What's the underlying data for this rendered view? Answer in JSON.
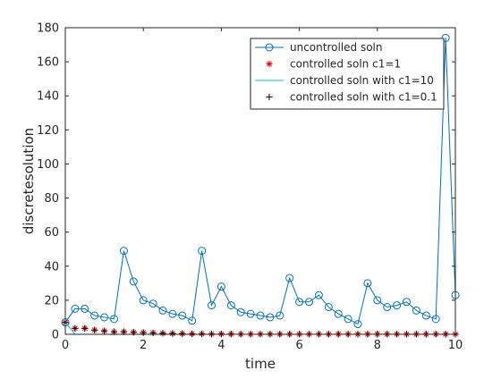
{
  "chart_data": {
    "type": "line",
    "xlabel": "time",
    "ylabel": "discretesolution",
    "xlim": [
      0,
      10
    ],
    "ylim": [
      0,
      180
    ],
    "xticks": [
      0,
      2,
      4,
      6,
      8,
      10
    ],
    "yticks": [
      0,
      20,
      40,
      60,
      80,
      100,
      120,
      140,
      160,
      180
    ],
    "grid": false,
    "legend_position": "top-right",
    "x": [
      0,
      0.25,
      0.5,
      0.75,
      1,
      1.25,
      1.5,
      1.75,
      2,
      2.25,
      2.5,
      2.75,
      3,
      3.25,
      3.5,
      3.75,
      4,
      4.25,
      4.5,
      4.75,
      5,
      5.25,
      5.5,
      5.75,
      6,
      6.25,
      6.5,
      6.75,
      7,
      7.25,
      7.5,
      7.75,
      8,
      8.25,
      8.5,
      8.75,
      9,
      9.25,
      9.5,
      9.75,
      10
    ],
    "series": [
      {
        "name": "uncontrolled soln",
        "color": "#0072BD",
        "marker": "circle",
        "line": true,
        "values": [
          7,
          15,
          15,
          11,
          10,
          9,
          49,
          31,
          20,
          18,
          14,
          12,
          11,
          8,
          49,
          17,
          28,
          17,
          13,
          12,
          11,
          10,
          11,
          33,
          19,
          19,
          23,
          16,
          12,
          9,
          6,
          30,
          20,
          16,
          17,
          19,
          14,
          11,
          9,
          174,
          23
        ]
      },
      {
        "name": "controlled soln c1=1",
        "color": "#ff0000",
        "marker": "asterisk",
        "line": false,
        "values": [
          7,
          3.5,
          3.5,
          2.5,
          2,
          1.5,
          1.5,
          1.2,
          1,
          0.8,
          0.6,
          0.5,
          0.4,
          0.3,
          0.3,
          0.2,
          0.2,
          0.2,
          0.1,
          0.1,
          0.1,
          0.1,
          0.1,
          0.1,
          0.1,
          0.1,
          0.1,
          0.1,
          0.1,
          0.1,
          0.1,
          0.1,
          0.1,
          0.1,
          0.1,
          0.1,
          0.1,
          0.1,
          0.1,
          0.1,
          0.1
        ]
      },
      {
        "name": "controlled soln with c1=10",
        "color": "#00c8c8",
        "marker": "none",
        "line": true,
        "values": [
          7,
          0,
          0,
          0,
          0,
          0,
          0,
          0,
          0,
          0,
          0,
          0,
          0,
          0,
          0,
          0,
          0,
          0,
          0,
          0,
          0,
          0,
          0,
          0,
          0,
          0,
          0,
          0,
          0,
          0,
          0,
          0,
          0,
          0,
          0,
          0,
          0,
          0,
          0,
          0,
          0
        ]
      },
      {
        "name": "controlled soln with c1=0.1",
        "color": "#000000",
        "marker": "plus",
        "line": false,
        "values": [
          7,
          3.5,
          3.5,
          2.5,
          2,
          1.5,
          1.5,
          1.2,
          1,
          0.8,
          0.6,
          0.5,
          0.4,
          0.3,
          0.3,
          0.2,
          0.2,
          0.2,
          0.1,
          0.1,
          0.1,
          0.1,
          0.1,
          0.1,
          0.1,
          0.1,
          0.1,
          0.1,
          0.1,
          0.1,
          0.1,
          0.1,
          0.1,
          0.1,
          0.1,
          0.1,
          0.1,
          0.1,
          0.1,
          0.1,
          0.1
        ]
      }
    ]
  }
}
